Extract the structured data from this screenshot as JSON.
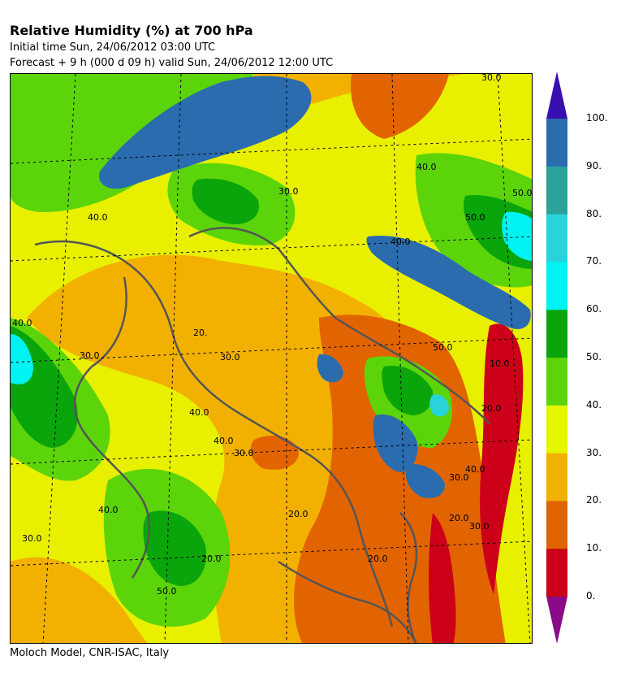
{
  "header": {
    "title": "Relative Humidity (%) at 700 hPa",
    "initial_time": "Initial time  Sun, 24/06/2012  03:00 UTC",
    "forecast": "Forecast +   9 h  (000 d 09 h)  valid Sun, 24/06/2012 12:00 UTC"
  },
  "footer": {
    "credit": "Moloch Model, CNR-ISAC, Italy"
  },
  "colorbar": {
    "labels": [
      "100.",
      "90.",
      "80.",
      "70.",
      "60.",
      "50.",
      "40.",
      "30.",
      "20.",
      "10.",
      "0."
    ],
    "bins": [
      {
        "range": "90-100",
        "color": "#2a6cae"
      },
      {
        "range": "80-90",
        "color": "#2aa39a"
      },
      {
        "range": "70-80",
        "color": "#28d4dc"
      },
      {
        "range": "60-70",
        "color": "#00f2f2"
      },
      {
        "range": "50-60",
        "color": "#0aa50a"
      },
      {
        "range": "40-50",
        "color": "#5cd40a"
      },
      {
        "range": "30-40",
        "color": "#e6f500"
      },
      {
        "range": "20-30",
        "color": "#f2b100"
      },
      {
        "range": "10-20",
        "color": "#e26400"
      },
      {
        "range": "0-10",
        "color": "#cc0018"
      }
    ],
    "over_color": "#3a0fb0",
    "under_color": "#8a0a8a"
  },
  "map_labels": [
    "30.0",
    "40.0",
    "20.",
    "30.0",
    "30.0",
    "40.0",
    "40.0",
    "40.0",
    "30.0",
    "20.0",
    "30.0",
    "20.0",
    "40.0",
    "20.0",
    "30.0",
    "40.0",
    "10.0",
    "20.0",
    "50.0",
    "50.0",
    "40.0",
    "50.0",
    "30.0",
    "20.0",
    "50.0",
    "30.0",
    "40.0"
  ]
}
